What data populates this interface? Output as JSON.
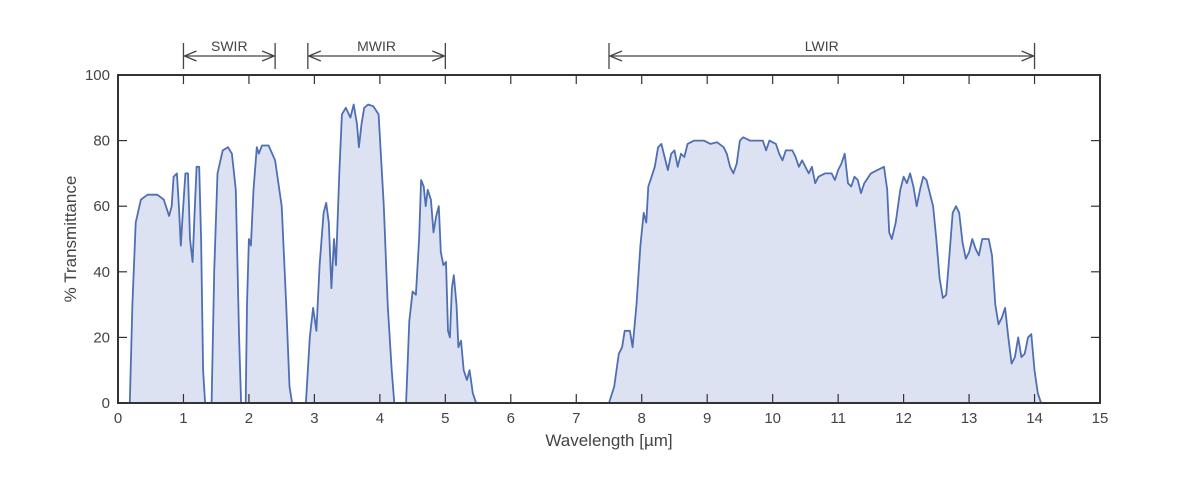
{
  "chart_data": {
    "type": "area",
    "title": "",
    "xlabel": "Wavelength [µm]",
    "ylabel": "% Transmittance",
    "xlim": [
      0,
      15
    ],
    "ylim": [
      0,
      100
    ],
    "xticks": [
      0,
      1,
      2,
      3,
      4,
      5,
      6,
      7,
      8,
      9,
      10,
      11,
      12,
      13,
      14,
      15
    ],
    "yticks": [
      0,
      20,
      40,
      60,
      80,
      100
    ],
    "grid": false,
    "colors": {
      "line": "#4f6fb3",
      "fill": "#dde2f2",
      "axis": "#333333",
      "text": "#444444"
    },
    "bands": [
      {
        "name": "SWIR",
        "range": [
          1.0,
          2.4
        ]
      },
      {
        "name": "MWIR",
        "range": [
          2.9,
          5.0
        ]
      },
      {
        "name": "LWIR",
        "range": [
          7.5,
          14.0
        ]
      }
    ],
    "series": [
      {
        "values": [
          [
            0.18,
            0
          ],
          [
            0.22,
            30
          ],
          [
            0.27,
            55
          ],
          [
            0.35,
            62
          ],
          [
            0.45,
            63.5
          ],
          [
            0.6,
            63.5
          ],
          [
            0.7,
            62
          ],
          [
            0.78,
            57
          ],
          [
            0.82,
            60
          ],
          [
            0.85,
            69
          ],
          [
            0.9,
            70
          ],
          [
            0.93,
            60
          ],
          [
            0.96,
            48
          ],
          [
            0.99,
            58
          ],
          [
            1.03,
            70
          ],
          [
            1.07,
            70
          ],
          [
            1.1,
            50
          ],
          [
            1.14,
            43
          ],
          [
            1.17,
            58
          ],
          [
            1.2,
            72
          ],
          [
            1.24,
            72
          ],
          [
            1.27,
            50
          ],
          [
            1.3,
            10
          ],
          [
            1.33,
            0
          ],
          [
            1.43,
            0
          ],
          [
            1.47,
            40
          ],
          [
            1.52,
            70
          ],
          [
            1.6,
            77
          ],
          [
            1.68,
            78
          ],
          [
            1.74,
            76
          ],
          [
            1.8,
            65
          ],
          [
            1.85,
            20
          ],
          [
            1.88,
            0
          ],
          [
            1.95,
            0
          ],
          [
            1.97,
            30
          ],
          [
            2.0,
            50
          ],
          [
            2.03,
            48
          ],
          [
            2.07,
            65
          ],
          [
            2.12,
            78
          ],
          [
            2.15,
            76
          ],
          [
            2.2,
            78.5
          ],
          [
            2.3,
            78.5
          ],
          [
            2.4,
            74
          ],
          [
            2.5,
            60
          ],
          [
            2.57,
            30
          ],
          [
            2.62,
            5
          ],
          [
            2.66,
            0
          ],
          [
            2.87,
            0
          ],
          [
            2.93,
            20
          ],
          [
            2.98,
            29
          ],
          [
            3.03,
            22
          ],
          [
            3.08,
            42
          ],
          [
            3.14,
            58
          ],
          [
            3.18,
            61
          ],
          [
            3.22,
            55
          ],
          [
            3.26,
            35
          ],
          [
            3.3,
            50
          ],
          [
            3.33,
            42
          ],
          [
            3.38,
            70
          ],
          [
            3.42,
            88
          ],
          [
            3.48,
            90
          ],
          [
            3.55,
            87
          ],
          [
            3.6,
            91
          ],
          [
            3.65,
            85
          ],
          [
            3.68,
            78
          ],
          [
            3.72,
            85
          ],
          [
            3.76,
            90
          ],
          [
            3.82,
            91
          ],
          [
            3.9,
            90.5
          ],
          [
            3.98,
            88
          ],
          [
            4.06,
            60
          ],
          [
            4.12,
            30
          ],
          [
            4.18,
            10
          ],
          [
            4.22,
            0
          ],
          [
            4.4,
            0
          ],
          [
            4.45,
            25
          ],
          [
            4.5,
            34
          ],
          [
            4.55,
            33
          ],
          [
            4.6,
            50
          ],
          [
            4.63,
            68
          ],
          [
            4.67,
            66
          ],
          [
            4.7,
            60
          ],
          [
            4.73,
            65
          ],
          [
            4.78,
            62
          ],
          [
            4.82,
            52
          ],
          [
            4.86,
            57
          ],
          [
            4.9,
            60
          ],
          [
            4.93,
            46
          ],
          [
            4.97,
            42
          ],
          [
            5.01,
            43
          ],
          [
            5.04,
            22
          ],
          [
            5.07,
            20
          ],
          [
            5.1,
            35
          ],
          [
            5.13,
            39
          ],
          [
            5.17,
            30
          ],
          [
            5.2,
            17
          ],
          [
            5.24,
            19
          ],
          [
            5.28,
            10
          ],
          [
            5.33,
            7
          ],
          [
            5.37,
            10
          ],
          [
            5.42,
            3
          ],
          [
            5.47,
            0
          ],
          [
            7.5,
            0
          ],
          [
            7.58,
            5
          ],
          [
            7.65,
            15
          ],
          [
            7.7,
            17
          ],
          [
            7.74,
            22
          ],
          [
            7.82,
            22
          ],
          [
            7.86,
            17
          ],
          [
            7.92,
            30
          ],
          [
            7.98,
            48
          ],
          [
            8.03,
            58
          ],
          [
            8.07,
            55
          ],
          [
            8.1,
            66
          ],
          [
            8.15,
            69
          ],
          [
            8.2,
            72
          ],
          [
            8.25,
            78
          ],
          [
            8.3,
            79
          ],
          [
            8.35,
            75
          ],
          [
            8.4,
            71
          ],
          [
            8.45,
            76
          ],
          [
            8.5,
            77
          ],
          [
            8.55,
            72
          ],
          [
            8.6,
            76
          ],
          [
            8.65,
            75
          ],
          [
            8.7,
            79
          ],
          [
            8.8,
            80
          ],
          [
            8.95,
            80
          ],
          [
            9.05,
            79
          ],
          [
            9.15,
            79.5
          ],
          [
            9.25,
            78
          ],
          [
            9.3,
            76
          ],
          [
            9.35,
            72
          ],
          [
            9.4,
            70
          ],
          [
            9.45,
            73
          ],
          [
            9.5,
            80
          ],
          [
            9.55,
            81
          ],
          [
            9.65,
            80
          ],
          [
            9.75,
            80
          ],
          [
            9.85,
            80
          ],
          [
            9.9,
            77
          ],
          [
            9.95,
            80
          ],
          [
            10.05,
            79
          ],
          [
            10.1,
            76
          ],
          [
            10.15,
            74
          ],
          [
            10.2,
            77
          ],
          [
            10.3,
            77
          ],
          [
            10.35,
            75
          ],
          [
            10.4,
            72
          ],
          [
            10.45,
            74
          ],
          [
            10.5,
            72
          ],
          [
            10.55,
            70
          ],
          [
            10.6,
            72
          ],
          [
            10.65,
            67
          ],
          [
            10.7,
            69
          ],
          [
            10.8,
            70
          ],
          [
            10.9,
            70
          ],
          [
            10.95,
            68
          ],
          [
            11.0,
            71
          ],
          [
            11.05,
            73
          ],
          [
            11.1,
            76
          ],
          [
            11.15,
            67
          ],
          [
            11.2,
            66
          ],
          [
            11.25,
            69
          ],
          [
            11.3,
            68
          ],
          [
            11.35,
            64
          ],
          [
            11.4,
            67
          ],
          [
            11.5,
            70
          ],
          [
            11.6,
            71
          ],
          [
            11.7,
            72
          ],
          [
            11.75,
            65
          ],
          [
            11.78,
            52
          ],
          [
            11.82,
            50
          ],
          [
            11.88,
            55
          ],
          [
            11.95,
            65
          ],
          [
            12.0,
            69
          ],
          [
            12.05,
            67
          ],
          [
            12.1,
            70
          ],
          [
            12.15,
            66
          ],
          [
            12.2,
            60
          ],
          [
            12.25,
            65
          ],
          [
            12.3,
            69
          ],
          [
            12.35,
            68
          ],
          [
            12.45,
            60
          ],
          [
            12.5,
            50
          ],
          [
            12.55,
            38
          ],
          [
            12.6,
            32
          ],
          [
            12.65,
            33
          ],
          [
            12.7,
            45
          ],
          [
            12.75,
            58
          ],
          [
            12.8,
            60
          ],
          [
            12.85,
            58
          ],
          [
            12.9,
            49
          ],
          [
            12.95,
            44
          ],
          [
            13.0,
            46
          ],
          [
            13.05,
            50
          ],
          [
            13.1,
            47
          ],
          [
            13.15,
            45
          ],
          [
            13.2,
            50
          ],
          [
            13.3,
            50
          ],
          [
            13.35,
            45
          ],
          [
            13.4,
            30
          ],
          [
            13.45,
            24
          ],
          [
            13.5,
            26
          ],
          [
            13.55,
            29
          ],
          [
            13.6,
            20
          ],
          [
            13.65,
            12
          ],
          [
            13.7,
            14
          ],
          [
            13.75,
            20
          ],
          [
            13.8,
            14
          ],
          [
            13.85,
            15
          ],
          [
            13.9,
            20
          ],
          [
            13.95,
            21
          ],
          [
            14.0,
            10
          ],
          [
            14.05,
            3
          ],
          [
            14.1,
            0
          ]
        ]
      }
    ]
  }
}
